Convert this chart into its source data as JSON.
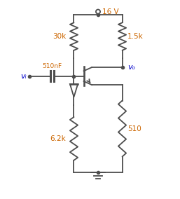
{
  "bg_color": "#ffffff",
  "line_color": "#4d4d4d",
  "label_color_orange": "#cc6600",
  "label_color_blue": "#0000cc",
  "fig_width": 2.57,
  "fig_height": 2.84,
  "dpi": 100,
  "labels": {
    "vcc": "16 V",
    "r1": "30k",
    "r2": "1.5k",
    "cap": "510nF",
    "r3": "6.2k",
    "r4": "510",
    "vi": "vᵢ",
    "vo": "vₒ"
  }
}
